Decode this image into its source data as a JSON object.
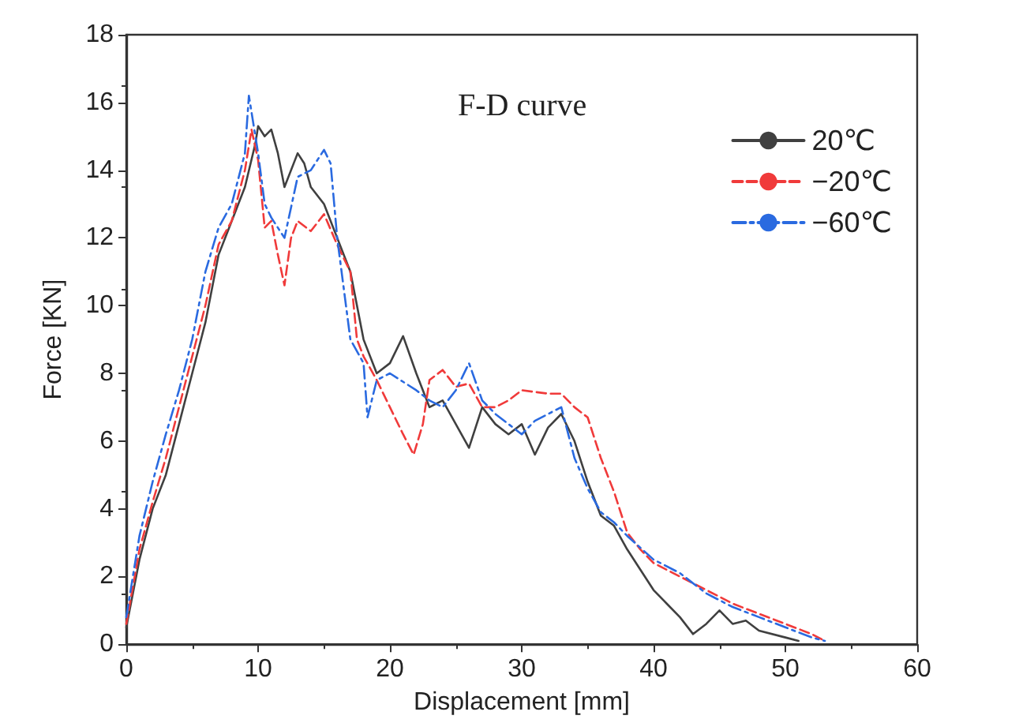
{
  "chart_data": {
    "type": "line",
    "title": "F-D curve",
    "xlabel": "Displacement [mm]",
    "ylabel": "Force [KN]",
    "xlim": [
      0,
      60
    ],
    "xticks": [
      0,
      10,
      20,
      30,
      40,
      50,
      60
    ],
    "ylim": [
      0,
      18
    ],
    "yticks": [
      0,
      2,
      4,
      6,
      8,
      10,
      12,
      14,
      16,
      18
    ],
    "grid": false,
    "legend": "top right",
    "marker": "none",
    "series": [
      {
        "name": "20℃",
        "color": "#404040",
        "line_style": "solid",
        "x": [
          0,
          1,
          2,
          3,
          4,
          5,
          6,
          7,
          8,
          9,
          9.8,
          10,
          10.5,
          11,
          11.5,
          12,
          13,
          13.5,
          14,
          15,
          16,
          17,
          18,
          19,
          20,
          21,
          22,
          23,
          24,
          25,
          26,
          27,
          28,
          29,
          30,
          31,
          32,
          33,
          34,
          35,
          36,
          37,
          38,
          39,
          40,
          41,
          42,
          43,
          44,
          45,
          46,
          47,
          48,
          50,
          51
        ],
        "values": [
          0.5,
          2.5,
          4,
          5,
          6.5,
          8,
          9.5,
          11.5,
          12.5,
          13.5,
          14.8,
          15.3,
          15,
          15.2,
          14.5,
          13.5,
          14.5,
          14.2,
          13.5,
          13,
          12,
          11,
          9,
          8,
          8.3,
          9.1,
          8,
          7,
          7.2,
          6.5,
          5.8,
          7,
          6.5,
          6.2,
          6.5,
          5.6,
          6.4,
          6.8,
          6,
          4.8,
          3.8,
          3.5,
          2.8,
          2.2,
          1.6,
          1.2,
          0.8,
          0.3,
          0.6,
          1,
          0.6,
          0.7,
          0.4,
          0.2,
          0.1
        ]
      },
      {
        "name": "−20℃",
        "color": "#f03a3a",
        "line_style": "dashed",
        "x": [
          0,
          1,
          2,
          3,
          4,
          5,
          6,
          7,
          8,
          9,
          9.5,
          10,
          10.5,
          11,
          11.5,
          12,
          12.5,
          13,
          14,
          15,
          16,
          17,
          17.5,
          18,
          19,
          20,
          21,
          21.8,
          22.5,
          23,
          24,
          25,
          26,
          27,
          28,
          29,
          30,
          32,
          33,
          34,
          35,
          36,
          37,
          38,
          39,
          40,
          42,
          44,
          46,
          48,
          50,
          52,
          53
        ],
        "values": [
          0.6,
          2.8,
          4.2,
          5.5,
          7,
          8.5,
          10,
          11.8,
          12.5,
          14,
          15.2,
          14.3,
          12.3,
          12.5,
          11.5,
          10.6,
          12,
          12.5,
          12.2,
          12.7,
          11.8,
          11,
          9,
          8.5,
          7.8,
          7,
          6.2,
          5.6,
          6.5,
          7.8,
          8.1,
          7.6,
          7.7,
          7,
          7,
          7.2,
          7.5,
          7.4,
          7.4,
          7,
          6.7,
          5.5,
          4.5,
          3.3,
          2.8,
          2.4,
          2,
          1.6,
          1.2,
          0.9,
          0.6,
          0.3,
          0.1
        ]
      },
      {
        "name": "−60℃",
        "color": "#2a6ae0",
        "line_style": "dashdot",
        "x": [
          0,
          1,
          2,
          3,
          4,
          5,
          6,
          7,
          8,
          9,
          9.3,
          10,
          10.5,
          11,
          12,
          13,
          14,
          15,
          15.5,
          16,
          17,
          18,
          18.3,
          19,
          20,
          22,
          23,
          24,
          25,
          26,
          27,
          28,
          29,
          30,
          31,
          32,
          33,
          34,
          35,
          36,
          37,
          38,
          40,
          42,
          44,
          46,
          48,
          50,
          52,
          53
        ],
        "values": [
          0.8,
          3.2,
          4.8,
          6.2,
          7.5,
          9,
          11,
          12.3,
          13,
          14.5,
          16.2,
          14.5,
          13,
          12.6,
          12,
          13.8,
          14,
          14.6,
          14.2,
          12,
          9,
          8.3,
          6.7,
          7.8,
          8,
          7.5,
          7.2,
          7,
          7.5,
          8.3,
          7.2,
          6.8,
          6.5,
          6.2,
          6.6,
          6.8,
          7,
          5.5,
          4.6,
          3.9,
          3.6,
          3.2,
          2.5,
          2.1,
          1.5,
          1.1,
          0.8,
          0.5,
          0.2,
          0.1
        ]
      }
    ]
  }
}
